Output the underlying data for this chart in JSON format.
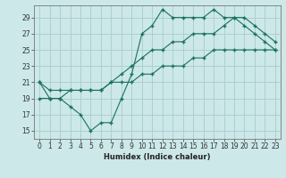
{
  "xlabel": "Humidex (Indice chaleur)",
  "bg_color": "#cce8e8",
  "grid_color": "#aacccc",
  "line_color": "#1a7060",
  "xlim": [
    -0.5,
    23.5
  ],
  "ylim": [
    14.0,
    30.5
  ],
  "yticks": [
    15,
    17,
    19,
    21,
    23,
    25,
    27,
    29
  ],
  "xticks": [
    0,
    1,
    2,
    3,
    4,
    5,
    6,
    7,
    8,
    9,
    10,
    11,
    12,
    13,
    14,
    15,
    16,
    17,
    18,
    19,
    20,
    21,
    22,
    23
  ],
  "line1_x": [
    0,
    1,
    2,
    3,
    4,
    5,
    6,
    7,
    8,
    9,
    10,
    11,
    12,
    13,
    14,
    15,
    16,
    17,
    18,
    19,
    20,
    21,
    22,
    23
  ],
  "line1_y": [
    21,
    19,
    19,
    18,
    17,
    15,
    16,
    16,
    19,
    22,
    27,
    28,
    30,
    29,
    29,
    29,
    29,
    30,
    29,
    29,
    28,
    27,
    26,
    25
  ],
  "line2_x": [
    0,
    1,
    2,
    3,
    4,
    5,
    6,
    7,
    8,
    9,
    10,
    11,
    12,
    13,
    14,
    15,
    16,
    17,
    18,
    19,
    20,
    21,
    22,
    23
  ],
  "line2_y": [
    21,
    20,
    20,
    20,
    20,
    20,
    20,
    21,
    22,
    23,
    24,
    25,
    25,
    26,
    26,
    27,
    27,
    27,
    28,
    29,
    29,
    28,
    27,
    26
  ],
  "line3_x": [
    0,
    1,
    2,
    3,
    4,
    5,
    6,
    7,
    8,
    9,
    10,
    11,
    12,
    13,
    14,
    15,
    16,
    17,
    18,
    19,
    20,
    21,
    22,
    23
  ],
  "line3_y": [
    19,
    19,
    19,
    20,
    20,
    20,
    20,
    21,
    21,
    21,
    22,
    22,
    23,
    23,
    23,
    24,
    24,
    25,
    25,
    25,
    25,
    25,
    25,
    25
  ],
  "xlabel_fontsize": 6.0,
  "tick_fontsize": 5.5
}
